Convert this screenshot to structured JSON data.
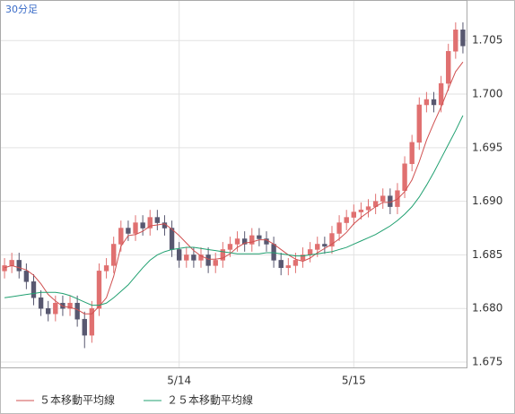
{
  "chart_data": {
    "type": "candlestick",
    "timeframe": "30分足",
    "categories": [
      null,
      null,
      null,
      null,
      null,
      null,
      null,
      null,
      null,
      null,
      null,
      null,
      null,
      null,
      null,
      null,
      null,
      null,
      null,
      null,
      null,
      null,
      null,
      null,
      "5/14",
      null,
      null,
      null,
      null,
      null,
      null,
      null,
      null,
      null,
      null,
      null,
      null,
      null,
      null,
      null,
      null,
      null,
      null,
      null,
      null,
      null,
      null,
      null,
      "5/15",
      null,
      null,
      null,
      null,
      null,
      null,
      null,
      null,
      null,
      null,
      null,
      null,
      null,
      null,
      null
    ],
    "open": [
      1.6835,
      1.684,
      1.6845,
      1.6835,
      1.6825,
      1.681,
      1.68,
      1.6795,
      1.6805,
      1.68,
      1.6805,
      1.679,
      1.6775,
      1.68,
      1.6835,
      1.684,
      1.686,
      1.6875,
      1.687,
      1.688,
      1.6875,
      1.6885,
      1.688,
      1.6875,
      1.6855,
      1.6845,
      1.685,
      1.6845,
      1.685,
      1.684,
      1.6845,
      1.6855,
      1.686,
      1.6865,
      1.686,
      1.6868,
      1.6865,
      1.686,
      1.6845,
      1.6838,
      1.684,
      1.6845,
      1.685,
      1.6855,
      1.686,
      1.6858,
      1.687,
      1.688,
      1.6885,
      1.689,
      1.6892,
      1.6895,
      1.69,
      1.6905,
      1.6895,
      1.691,
      1.6935,
      1.6955,
      1.699,
      1.6995,
      1.699,
      1.701,
      1.704,
      1.706
    ],
    "high": [
      1.6847,
      1.6852,
      1.6852,
      1.6842,
      1.6832,
      1.6817,
      1.6807,
      1.6812,
      1.6812,
      1.6812,
      1.6812,
      1.6797,
      1.6807,
      1.6842,
      1.6847,
      1.6867,
      1.6882,
      1.6882,
      1.6887,
      1.6887,
      1.6892,
      1.6892,
      1.6887,
      1.6882,
      1.6862,
      1.6857,
      1.6857,
      1.6857,
      1.6857,
      1.6852,
      1.6862,
      1.6867,
      1.6872,
      1.6872,
      1.6875,
      1.6875,
      1.6872,
      1.6867,
      1.6852,
      1.6847,
      1.6852,
      1.6857,
      1.6862,
      1.6867,
      1.6867,
      1.6877,
      1.6887,
      1.6892,
      1.6897,
      1.6899,
      1.6902,
      1.6907,
      1.6912,
      1.6912,
      1.6917,
      1.6942,
      1.6962,
      1.6997,
      1.7002,
      1.7002,
      1.7017,
      1.7047,
      1.7067,
      1.7067
    ],
    "low": [
      1.6828,
      1.6833,
      1.6828,
      1.6818,
      1.6803,
      1.6793,
      1.6788,
      1.6788,
      1.6793,
      1.6793,
      1.6783,
      1.6763,
      1.6768,
      1.6793,
      1.6828,
      1.6833,
      1.6853,
      1.6863,
      1.6863,
      1.6868,
      1.6868,
      1.6873,
      1.6868,
      1.6848,
      1.6838,
      1.6838,
      1.6838,
      1.6838,
      1.6833,
      1.6833,
      1.6838,
      1.6848,
      1.6853,
      1.6853,
      1.6853,
      1.6858,
      1.6853,
      1.6838,
      1.6831,
      1.6831,
      1.6833,
      1.6838,
      1.6843,
      1.6848,
      1.6851,
      1.6851,
      1.6863,
      1.6873,
      1.6878,
      1.6883,
      1.6885,
      1.6888,
      1.6893,
      1.6888,
      1.6888,
      1.6903,
      1.6928,
      1.6948,
      1.6983,
      1.6983,
      1.6983,
      1.7003,
      1.7033,
      1.7038
    ],
    "close": [
      1.684,
      1.6845,
      1.6835,
      1.6825,
      1.681,
      1.68,
      1.6795,
      1.6805,
      1.68,
      1.6805,
      1.679,
      1.6775,
      1.68,
      1.6835,
      1.684,
      1.686,
      1.6875,
      1.687,
      1.688,
      1.6875,
      1.6885,
      1.688,
      1.6875,
      1.6855,
      1.6845,
      1.685,
      1.6845,
      1.685,
      1.684,
      1.6845,
      1.6855,
      1.686,
      1.6865,
      1.686,
      1.6868,
      1.6865,
      1.686,
      1.6845,
      1.6838,
      1.684,
      1.6845,
      1.685,
      1.6855,
      1.686,
      1.6858,
      1.687,
      1.688,
      1.6885,
      1.689,
      1.6892,
      1.6895,
      1.69,
      1.6905,
      1.6895,
      1.691,
      1.6935,
      1.6955,
      1.699,
      1.6995,
      1.699,
      1.701,
      1.704,
      1.706,
      1.7045
    ],
    "up_color": "#e07070",
    "down_color": "#585870",
    "series": [
      {
        "name": "５本移動平均線",
        "color": "#d05050",
        "values": [
          1.6838,
          1.684,
          1.6838,
          1.6836,
          1.6831,
          1.6823,
          1.6813,
          1.6807,
          1.6802,
          1.6801,
          1.6799,
          1.6795,
          1.6795,
          1.6802,
          1.681,
          1.683,
          1.6858,
          1.6868,
          1.6869,
          1.6872,
          1.6877,
          1.6878,
          1.6879,
          1.6874,
          1.6868,
          1.6861,
          1.6854,
          1.6849,
          1.6846,
          1.6846,
          1.6847,
          1.6851,
          1.6857,
          1.6861,
          1.6862,
          1.6864,
          1.6864,
          1.686,
          1.6855,
          1.685,
          1.6846,
          1.6844,
          1.6847,
          1.6852,
          1.6856,
          1.686,
          1.6865,
          1.6871,
          1.6879,
          1.6885,
          1.689,
          1.6895,
          1.6899,
          1.6899,
          1.6902,
          1.6909,
          1.692,
          1.6937,
          1.6957,
          1.6973,
          1.6988,
          1.7005,
          1.7021,
          1.703
        ]
      },
      {
        "name": "２５本移動平均線",
        "color": "#20a070",
        "values": [
          1.681,
          1.6811,
          1.6812,
          1.6813,
          1.6814,
          1.6815,
          1.6815,
          1.6815,
          1.6814,
          1.6812,
          1.6809,
          1.6806,
          1.6803,
          1.6803,
          1.6805,
          1.681,
          1.6816,
          1.6822,
          1.683,
          1.6838,
          1.6845,
          1.685,
          1.6853,
          1.6855,
          1.6856,
          1.6857,
          1.6857,
          1.6856,
          1.6855,
          1.6854,
          1.6853,
          1.6852,
          1.6851,
          1.6851,
          1.6851,
          1.6851,
          1.6852,
          1.6852,
          1.6851,
          1.685,
          1.6849,
          1.6849,
          1.685,
          1.6851,
          1.6852,
          1.6853,
          1.6855,
          1.6857,
          1.686,
          1.6863,
          1.6866,
          1.6869,
          1.6873,
          1.6877,
          1.6882,
          1.6888,
          1.6895,
          1.6904,
          1.6915,
          1.6927,
          1.694,
          1.6953,
          1.6966,
          1.698
        ]
      }
    ],
    "ylim": [
      1.6745,
      1.7087
    ],
    "yticks": [
      1.675,
      {
        "value": 1.68,
        "label": "1.680"
      },
      1.685,
      {
        "value": 1.69,
        "label": "1.690"
      },
      1.695,
      {
        "value": 1.7,
        "label": "1.700"
      },
      1.705
    ],
    "grid": true
  }
}
